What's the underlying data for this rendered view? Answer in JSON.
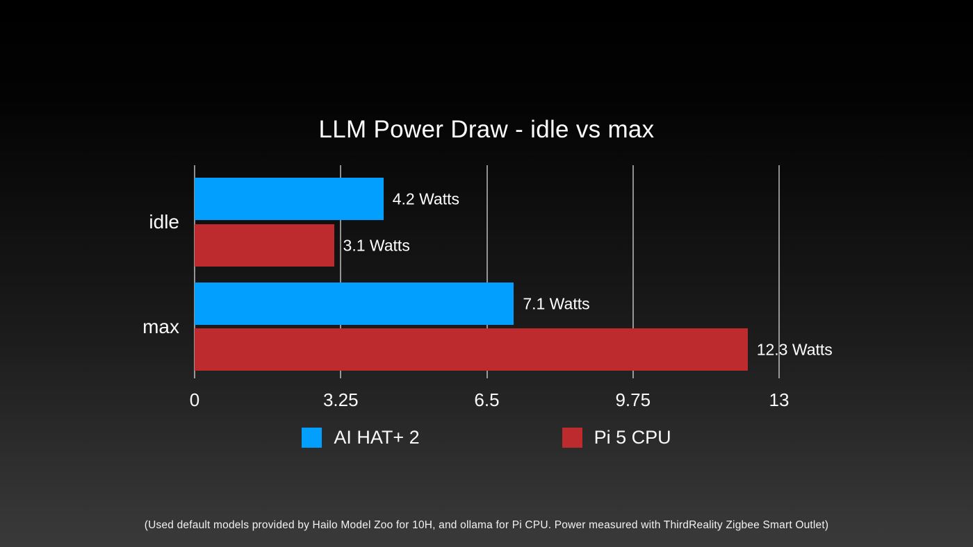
{
  "slide": {
    "footer_note": "(Used default models provided by Hailo Model Zoo for 10H, and ollama for Pi CPU. Power measured with ThirdReality Zigbee Smart Outlet)"
  },
  "chart_data": {
    "type": "bar",
    "orientation": "horizontal",
    "title": "LLM Power Draw - idle vs max",
    "categories": [
      "idle",
      "max"
    ],
    "series": [
      {
        "name": "AI HAT+ 2",
        "color": "#029FFF",
        "values": [
          4.2,
          7.1
        ],
        "labels": [
          "4.2 Watts",
          "7.1 Watts"
        ]
      },
      {
        "name": "Pi 5 CPU",
        "color": "#BE2B2E",
        "values": [
          3.1,
          12.3
        ],
        "labels": [
          "3.1 Watts",
          "12.3 Watts"
        ]
      }
    ],
    "unit": "Watts",
    "xlim": [
      0,
      13
    ],
    "x_ticks": [
      0,
      3.25,
      6.5,
      9.75,
      13
    ],
    "x_tick_labels": [
      "0",
      "3.25",
      "6.5",
      "9.75",
      "13"
    ],
    "grid": "vertical",
    "legend_position": "bottom",
    "gridline_color": "rgba(255,255,255,0.55)",
    "text_color": "#FFFFFF"
  }
}
